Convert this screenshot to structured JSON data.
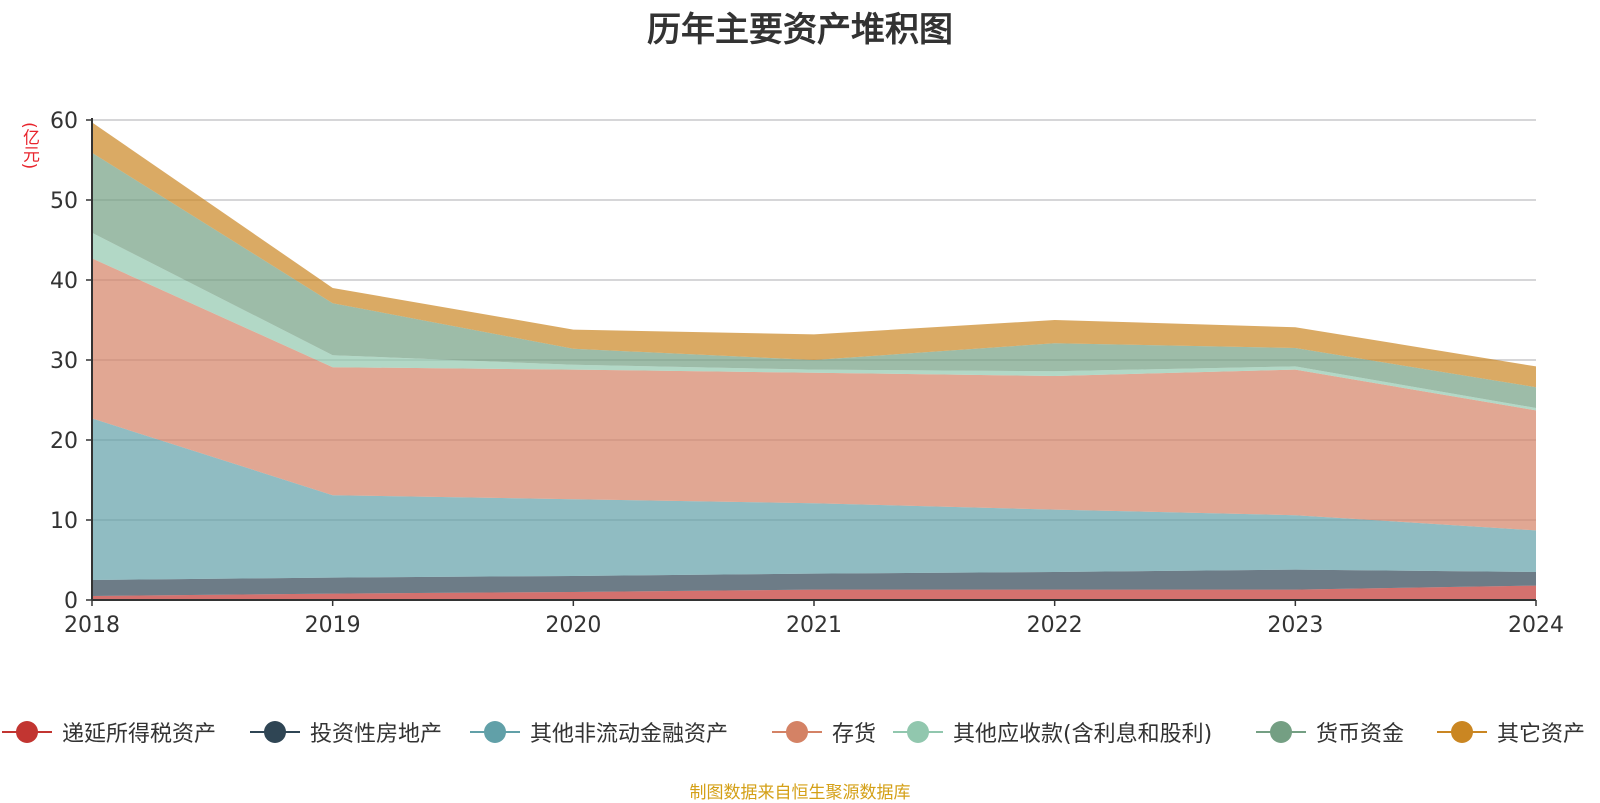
{
  "chart_data": {
    "type": "area",
    "stacked": true,
    "title": "历年主要资产堆积图",
    "unit_label": "(亿元)",
    "x": [
      "2018",
      "2019",
      "2020",
      "2021",
      "2022",
      "2023",
      "2024"
    ],
    "ylim": [
      0,
      60
    ],
    "yticks": [
      "0",
      "10",
      "20",
      "30",
      "40",
      "50",
      "60"
    ],
    "grid": true,
    "legend_position": "bottom",
    "series": [
      {
        "name": "递延所得税资产",
        "color": "#c23531",
        "values": [
          0.5,
          0.8,
          1.0,
          1.3,
          1.3,
          1.3,
          1.8
        ]
      },
      {
        "name": "投资性房地产",
        "color": "#2f4554",
        "values": [
          2.0,
          2.0,
          2.0,
          2.0,
          2.2,
          2.5,
          1.7
        ]
      },
      {
        "name": "其他非流动金融资产",
        "color": "#61a0a8",
        "values": [
          20.2,
          10.3,
          9.6,
          8.8,
          7.8,
          6.8,
          5.2
        ]
      },
      {
        "name": "存货",
        "color": "#d48265",
        "values": [
          20.0,
          16.0,
          16.2,
          16.3,
          16.7,
          18.2,
          15.0
        ]
      },
      {
        "name": "其他应收款(含利息和股利)",
        "color": "#91c7ae",
        "values": [
          3.2,
          1.5,
          0.6,
          0.4,
          0.6,
          0.4,
          0.3
        ]
      },
      {
        "name": "货币资金",
        "color": "#749f83",
        "values": [
          10.0,
          6.5,
          2.0,
          1.2,
          3.5,
          2.3,
          2.6
        ]
      },
      {
        "name": "其它资产",
        "color": "#ca8622",
        "values": [
          3.8,
          1.9,
          2.4,
          3.2,
          2.9,
          2.6,
          2.6
        ]
      }
    ]
  },
  "source_note": "制图数据来自恒生聚源数据库"
}
